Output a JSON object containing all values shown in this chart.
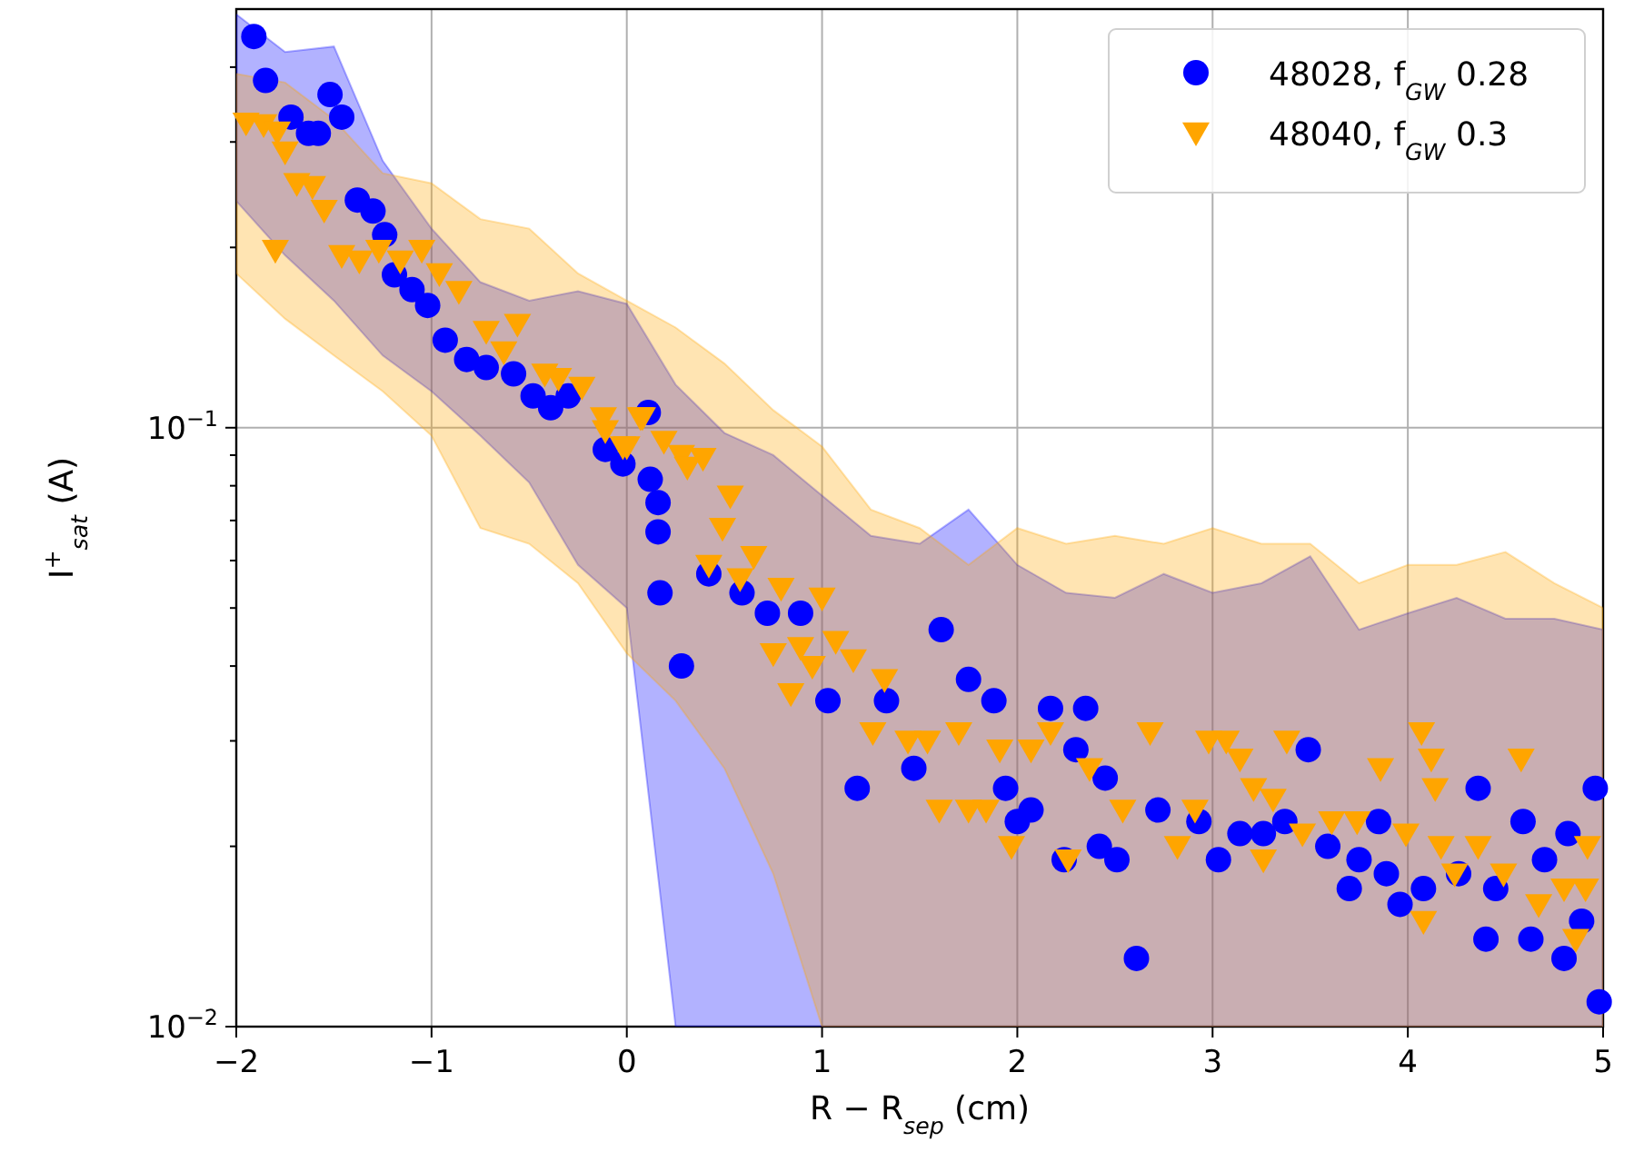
{
  "chart_data": {
    "type": "scatter",
    "xlabel": "R − R$_{sep}$ (cm)",
    "ylabel": "I$^{+}$$_{sat}$ (A)",
    "log": "y",
    "grid": true,
    "legend": "top right",
    "xlim": [
      -2,
      5
    ],
    "xticks": [
      {
        "value": -2,
        "label": "−2"
      },
      {
        "value": -1,
        "label": "−1"
      },
      0,
      1,
      2,
      3,
      4,
      5
    ],
    "ylim": [
      0.01,
      0.5
    ],
    "yticks": [
      {
        "value": 0.01,
        "label": "10$^{−2}$"
      },
      {
        "value": 0.02,
        "label": null
      },
      {
        "value": 0.03,
        "label": null
      },
      {
        "value": 0.04,
        "label": null
      },
      {
        "value": 0.05,
        "label": null
      },
      {
        "value": 0.06,
        "label": null
      },
      {
        "value": 0.07,
        "label": null
      },
      {
        "value": 0.08,
        "label": null
      },
      {
        "value": 0.09,
        "label": null
      },
      {
        "value": 0.1,
        "label": "10$^{−1}$"
      },
      {
        "value": 0.2,
        "label": null
      },
      {
        "value": 0.3,
        "label": null
      },
      {
        "value": 0.4,
        "label": null
      }
    ],
    "series": [
      {
        "type": "area",
        "color": "#0000ff",
        "x": [
          -2,
          -1.75,
          -1.5,
          -1.25,
          -1,
          -0.75,
          -0.5,
          -0.25,
          0,
          0.25,
          0.5,
          0.75,
          1,
          1.25,
          1.5,
          1.75,
          2,
          2.25,
          2.5,
          2.75,
          3,
          3.25,
          3.5,
          3.75,
          4,
          4.25,
          4.5,
          4.75,
          5
        ],
        "values": [
          null,
          null,
          null,
          null,
          null,
          null,
          null,
          null,
          null,
          null,
          null,
          null,
          null,
          null,
          null,
          null,
          null,
          null,
          null,
          null,
          null,
          null,
          null,
          null,
          null,
          null,
          null,
          null,
          null
        ],
        "lower": [
          0.239,
          0.194,
          0.163,
          0.132,
          0.115,
          0.097,
          0.081,
          0.059,
          0.05,
          0.01,
          0.01,
          0.01,
          0.01,
          0.01,
          0.01,
          0.01,
          0.01,
          0.01,
          0.01,
          0.01,
          0.01,
          0.01,
          0.01,
          0.01,
          0.01,
          0.01,
          0.01,
          0.01,
          0.01
        ],
        "upper": [
          0.49,
          0.424,
          0.433,
          0.279,
          0.215,
          0.175,
          0.163,
          0.169,
          0.161,
          0.118,
          0.098,
          0.09,
          0.077,
          0.066,
          0.064,
          0.073,
          0.059,
          0.053,
          0.052,
          0.057,
          0.053,
          0.055,
          0.061,
          0.046,
          0.049,
          0.052,
          0.048,
          0.048,
          0.046
        ]
      },
      {
        "type": "area",
        "color": "#ffa500",
        "x": [
          -2,
          -1.75,
          -1.5,
          -1.25,
          -1,
          -0.75,
          -0.5,
          -0.25,
          0,
          0.25,
          0.5,
          0.75,
          1,
          1.25,
          1.5,
          1.75,
          2,
          2.25,
          2.5,
          2.75,
          3,
          3.25,
          3.5,
          3.75,
          4,
          4.25,
          4.5,
          4.75,
          5
        ],
        "values": [
          null,
          null,
          null,
          null,
          null,
          null,
          null,
          null,
          null,
          null,
          null,
          null,
          null,
          null,
          null,
          null,
          null,
          null,
          null,
          null,
          null,
          null,
          null,
          null,
          null,
          null,
          null,
          null,
          null
        ],
        "lower": [
          0.181,
          0.152,
          0.132,
          0.115,
          0.097,
          0.068,
          0.064,
          0.055,
          0.042,
          0.035,
          0.027,
          0.018,
          0.01,
          0.01,
          0.01,
          0.01,
          0.01,
          0.01,
          0.01,
          0.01,
          0.01,
          0.01,
          0.01,
          0.01,
          0.01,
          0.01,
          0.01,
          0.01,
          0.01
        ],
        "upper": [
          0.39,
          0.377,
          0.327,
          0.266,
          0.256,
          0.223,
          0.215,
          0.181,
          0.163,
          0.147,
          0.128,
          0.107,
          0.093,
          0.073,
          0.068,
          0.059,
          0.068,
          0.064,
          0.066,
          0.064,
          0.068,
          0.064,
          0.064,
          0.055,
          0.059,
          0.059,
          0.062,
          0.055,
          0.05
        ]
      },
      {
        "name": "48028, f$_{GW}$ 0.28",
        "color": "#0000ff",
        "marker": "circle",
        "x": [
          -1.91,
          -1.85,
          -1.72,
          -1.63,
          -1.58,
          -1.52,
          -1.46,
          -1.38,
          -1.3,
          -1.24,
          -1.19,
          -1.1,
          -1.02,
          -0.93,
          -0.82,
          -0.72,
          -0.58,
          -0.48,
          -0.39,
          -0.3,
          -0.11,
          -0.02,
          0.11,
          0.12,
          0.16,
          0.16,
          0.17,
          0.28,
          0.42,
          0.59,
          0.72,
          0.89,
          1.03,
          1.18,
          1.33,
          1.47,
          1.61,
          1.75,
          1.88,
          1.94,
          2.0,
          2.07,
          2.17,
          2.24,
          2.3,
          2.35,
          2.42,
          2.45,
          2.51,
          2.61,
          2.72,
          2.93,
          3.03,
          3.14,
          3.26,
          3.37,
          3.49,
          3.59,
          3.7,
          3.75,
          3.85,
          3.89,
          3.96,
          4.08,
          4.26,
          4.36,
          4.4,
          4.45,
          4.59,
          4.63,
          4.7,
          4.8,
          4.82,
          4.89,
          4.96,
          4.98
        ],
        "values": [
          0.45,
          0.38,
          0.33,
          0.31,
          0.31,
          0.36,
          0.33,
          0.24,
          0.23,
          0.21,
          0.18,
          0.17,
          0.16,
          0.14,
          0.13,
          0.126,
          0.123,
          0.113,
          0.108,
          0.113,
          0.092,
          0.087,
          0.106,
          0.082,
          0.075,
          0.067,
          0.053,
          0.04,
          0.057,
          0.053,
          0.049,
          0.049,
          0.035,
          0.025,
          0.035,
          0.027,
          0.046,
          0.038,
          0.035,
          0.025,
          0.022,
          0.023,
          0.034,
          0.019,
          0.029,
          0.034,
          0.02,
          0.026,
          0.019,
          0.013,
          0.023,
          0.022,
          0.019,
          0.021,
          0.021,
          0.022,
          0.029,
          0.02,
          0.017,
          0.019,
          0.022,
          0.018,
          0.016,
          0.017,
          0.018,
          0.025,
          0.014,
          0.017,
          0.022,
          0.014,
          0.019,
          0.013,
          0.021,
          0.015,
          0.025,
          0.011
        ]
      },
      {
        "name": "48040, f$_{GW}$ 0.3",
        "color": "#ffa500",
        "marker": "triangle",
        "x": [
          -1.95,
          -1.86,
          -1.79,
          -1.75,
          -1.8,
          -1.69,
          -1.61,
          -1.55,
          -1.46,
          -1.37,
          -1.27,
          -1.16,
          -1.05,
          -0.96,
          -0.86,
          -0.72,
          -0.56,
          -0.63,
          -0.42,
          -0.35,
          -0.23,
          -0.12,
          -0.11,
          -0.02,
          0.0,
          0.07,
          0.08,
          0.19,
          0.28,
          0.31,
          0.39,
          0.53,
          0.49,
          0.42,
          0.58,
          0.65,
          0.79,
          1.0,
          0.75,
          0.89,
          0.95,
          1.07,
          1.16,
          1.32,
          0.84,
          1.26,
          1.44,
          1.54,
          1.7,
          1.6,
          1.75,
          1.84,
          1.91,
          2.07,
          2.17,
          2.26,
          1.97,
          2.37,
          2.54,
          2.68,
          2.82,
          2.91,
          2.98,
          3.07,
          3.14,
          3.21,
          3.31,
          3.26,
          3.38,
          3.46,
          3.61,
          3.74,
          3.86,
          3.99,
          4.07,
          4.12,
          4.14,
          4.08,
          4.17,
          4.24,
          4.36,
          4.49,
          4.58,
          4.67,
          4.8,
          4.91,
          4.86,
          4.92
        ],
        "values": [
          0.323,
          0.321,
          0.312,
          0.289,
          0.198,
          0.256,
          0.253,
          0.231,
          0.194,
          0.19,
          0.198,
          0.19,
          0.198,
          0.181,
          0.169,
          0.145,
          0.149,
          0.134,
          0.123,
          0.121,
          0.117,
          0.104,
          0.099,
          0.093,
          0.093,
          0.104,
          0.104,
          0.095,
          0.09,
          0.086,
          0.089,
          0.077,
          0.068,
          0.059,
          0.056,
          0.061,
          0.054,
          0.052,
          0.042,
          0.043,
          0.04,
          0.044,
          0.041,
          0.038,
          0.036,
          0.031,
          0.03,
          0.03,
          0.031,
          0.023,
          0.023,
          0.023,
          0.029,
          0.029,
          0.031,
          0.019,
          0.02,
          0.027,
          0.023,
          0.031,
          0.02,
          0.023,
          0.03,
          0.03,
          0.028,
          0.025,
          0.024,
          0.019,
          0.03,
          0.021,
          0.022,
          0.022,
          0.027,
          0.021,
          0.031,
          0.028,
          0.025,
          0.015,
          0.02,
          0.018,
          0.02,
          0.018,
          0.028,
          0.016,
          0.017,
          0.017,
          0.014,
          0.02
        ]
      }
    ]
  }
}
